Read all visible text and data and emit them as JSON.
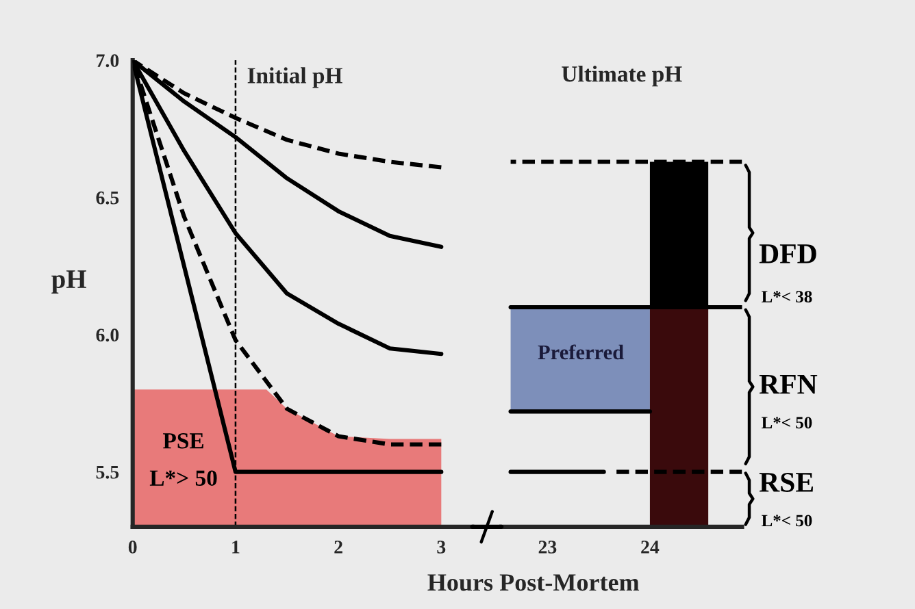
{
  "chart_data": [
    {
      "type": "line",
      "xlabel": "Hours Post-Mortem",
      "ylabel": "pH",
      "x": [
        0,
        0.5,
        1,
        1.5,
        2,
        2.5,
        3
      ],
      "series": [
        {
          "color": "#000000",
          "line_style": "dashed",
          "values": [
            7.0,
            6.88,
            6.79,
            6.71,
            6.66,
            6.63,
            6.61
          ]
        },
        {
          "color": "#000000",
          "line_style": "solid",
          "values": [
            7.0,
            6.85,
            6.72,
            6.57,
            6.45,
            6.36,
            6.32
          ]
        },
        {
          "color": "#000000",
          "line_style": "solid",
          "values": [
            7.0,
            6.67,
            6.37,
            6.15,
            6.04,
            5.95,
            5.93
          ]
        },
        {
          "color": "#000000",
          "line_style": "dashed",
          "values": [
            7.0,
            6.43,
            5.98,
            5.73,
            5.63,
            5.6,
            5.6
          ]
        },
        {
          "color": "#000000",
          "line_style": "solid",
          "x": [
            0,
            1,
            3
          ],
          "values": [
            7.0,
            5.5,
            5.5
          ]
        },
        {
          "type": "area",
          "color": "#e87a7a",
          "x": [
            0,
            1.3,
            1.5,
            2,
            2.5,
            3
          ],
          "values": [
            5.8,
            5.8,
            5.73,
            5.63,
            5.62,
            5.62
          ]
        }
      ],
      "xlim": [
        0,
        3.3
      ],
      "xticks": [
        0,
        1,
        2,
        3
      ],
      "ylim": [
        5.3,
        7.0
      ],
      "yticks": [
        {
          "value": 5.5,
          "label": "5.5"
        },
        {
          "value": 6.0,
          "label": "6.0"
        },
        {
          "value": 6.5,
          "label": "6.5"
        },
        {
          "value": 7.0,
          "label": "7.0"
        }
      ],
      "ref_lines": [
        {
          "axis": "x",
          "value": 1,
          "label": "Initial pH",
          "line_style": "dashed",
          "color": "#000000"
        }
      ],
      "annotations": [
        "PSE",
        "L*> 50"
      ]
    },
    {
      "type": "line",
      "title": "Ultimate pH",
      "tick_labels": "x",
      "series": [
        {
          "type": "bar",
          "color": "#7d8fba",
          "x": [
            23.32
          ],
          "base": [
            5.72
          ],
          "values": [
            0.38
          ]
        },
        {
          "type": "bar",
          "color": "#3a0a0c",
          "x": [
            24.285
          ],
          "base": [
            5.3
          ],
          "values": [
            0.8
          ]
        },
        {
          "type": "bar",
          "color": "#000000",
          "x": [
            24.285
          ],
          "base": [
            6.1
          ],
          "values": [
            0.53
          ]
        },
        {
          "color": "#000000",
          "line_style": "dashed",
          "x": [
            22.64,
            24.9
          ],
          "values": [
            6.63,
            6.63
          ]
        },
        {
          "color": "#000000",
          "line_style": "solid",
          "x": [
            22.64,
            24.9
          ],
          "values": [
            6.1,
            6.1
          ]
        },
        {
          "color": "#000000",
          "line_style": "solid",
          "x": [
            22.64,
            24.0
          ],
          "values": [
            5.72,
            5.72
          ]
        },
        {
          "color": "#000000",
          "line_style": "solid",
          "x": [
            22.64,
            23.55
          ],
          "values": [
            5.5,
            5.5
          ]
        },
        {
          "color": "#000000",
          "line_style": "dashed",
          "x": [
            23.65,
            24.9
          ],
          "values": [
            5.5,
            5.5
          ]
        }
      ],
      "xlim": [
        22.55,
        24.9
      ],
      "xticks": [
        23,
        24
      ],
      "ylim": [
        5.3,
        7.0
      ],
      "annotations": [
        "Preferred",
        "DFD",
        "L*< 38",
        "RFN",
        "L*< 50",
        "RSE",
        "L*< 50"
      ]
    }
  ]
}
